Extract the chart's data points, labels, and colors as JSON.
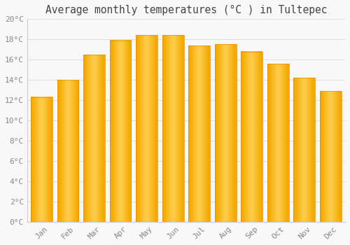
{
  "title": "Average monthly temperatures (°C ) in Tultepec",
  "months": [
    "Jan",
    "Feb",
    "Mar",
    "Apr",
    "May",
    "Jun",
    "Jul",
    "Aug",
    "Sep",
    "Oct",
    "Nov",
    "Dec"
  ],
  "values": [
    12.3,
    14.0,
    16.5,
    17.9,
    18.4,
    18.4,
    17.4,
    17.5,
    16.8,
    15.6,
    14.2,
    12.9
  ],
  "bar_color_left": "#F5A800",
  "bar_color_center": "#FFD050",
  "bar_color_right": "#F5A800",
  "bar_edge_color": "#E09000",
  "background_color": "#F8F8F8",
  "plot_bg_color": "#F8F8F8",
  "grid_color": "#DDDDDD",
  "title_color": "#444444",
  "label_color": "#888888",
  "spine_color": "#CCCCCC",
  "ylim": [
    0,
    20
  ],
  "ytick_step": 2,
  "title_fontsize": 10.5,
  "tick_fontsize": 8,
  "font_family": "monospace"
}
